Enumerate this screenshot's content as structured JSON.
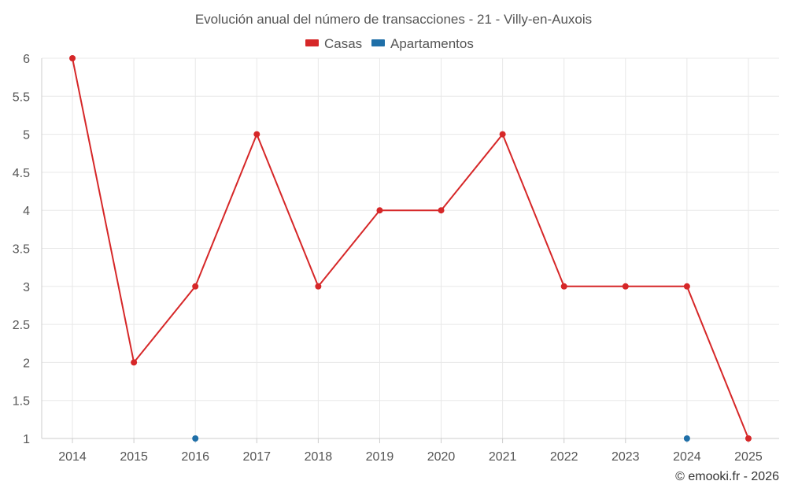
{
  "chart_data": {
    "type": "line",
    "title": "Evolución anual del número de transacciones - 21 - Villy-en-Auxois",
    "x": [
      "2014",
      "2015",
      "2016",
      "2017",
      "2018",
      "2019",
      "2020",
      "2021",
      "2022",
      "2023",
      "2024",
      "2025"
    ],
    "series": [
      {
        "name": "Casas",
        "color": "#d62728",
        "values": [
          6,
          2,
          3,
          5,
          3,
          4,
          4,
          5,
          3,
          3,
          3,
          1
        ]
      },
      {
        "name": "Apartamentos",
        "color": "#1f6fa8",
        "values": [
          null,
          null,
          1,
          null,
          null,
          null,
          null,
          null,
          null,
          null,
          1,
          null
        ]
      }
    ],
    "ylim": [
      1,
      6
    ],
    "yticks": [
      "1",
      "1.5",
      "2",
      "2.5",
      "3",
      "3.5",
      "4",
      "4.5",
      "5",
      "5.5",
      "6"
    ],
    "grid": true,
    "legend_position": "top-center",
    "credit": "© emooki.fr - 2026"
  }
}
